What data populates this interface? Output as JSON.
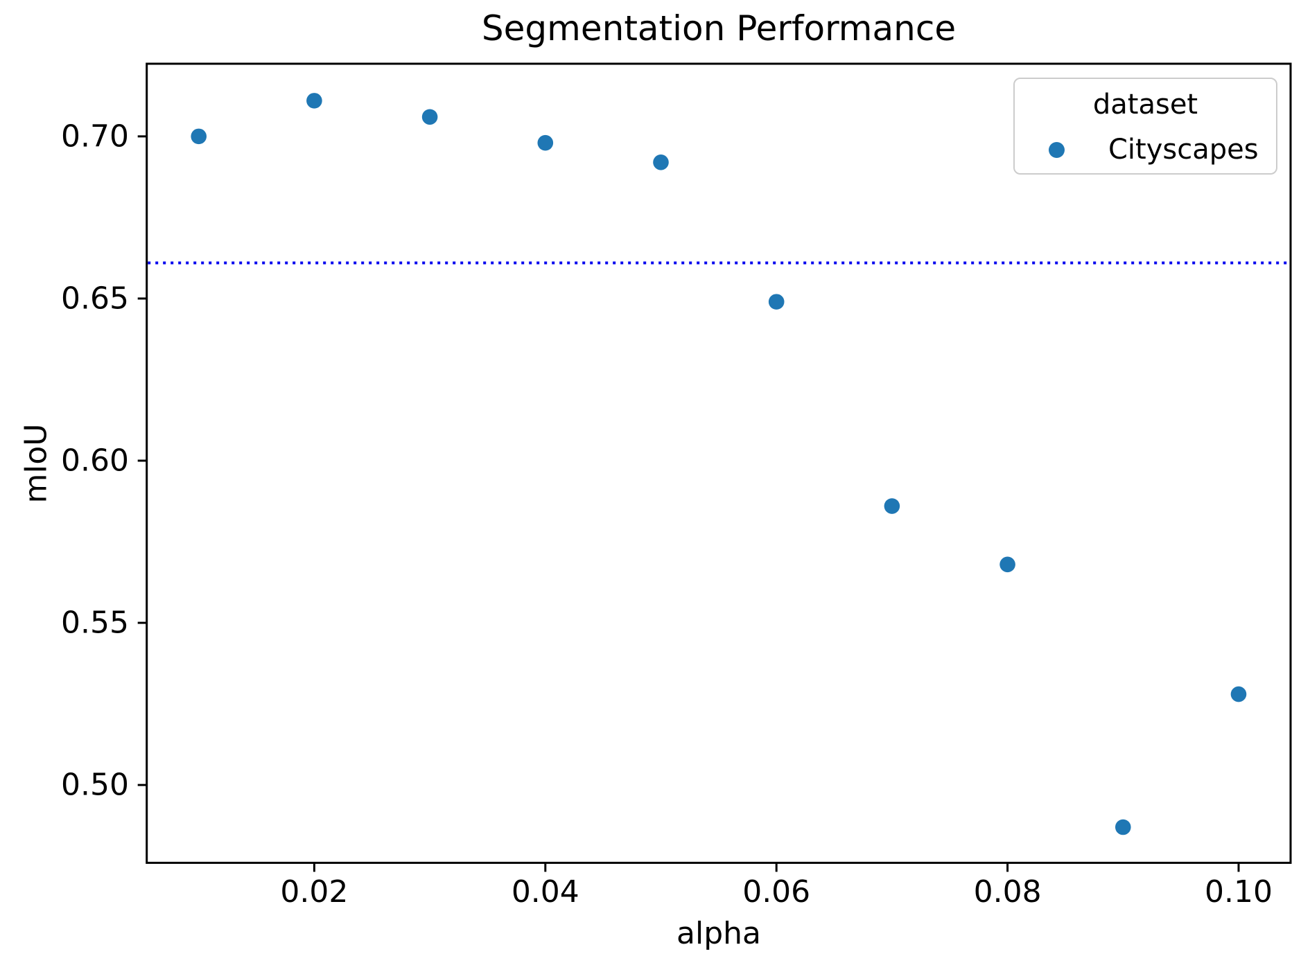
{
  "chart_data": {
    "type": "scatter",
    "title": "Segmentation Performance",
    "xlabel": "alpha",
    "ylabel": "mIoU",
    "grid": false,
    "xlim": [
      0.0055,
      0.1045
    ],
    "ylim": [
      0.476,
      0.7224
    ],
    "xticks": {
      "values": [
        0.02,
        0.04,
        0.06,
        0.08,
        0.1
      ],
      "labels": [
        "0.02",
        "0.04",
        "0.06",
        "0.08",
        "0.10"
      ]
    },
    "yticks": {
      "values": [
        0.5,
        0.55,
        0.6,
        0.65,
        0.7
      ],
      "labels": [
        "0.50",
        "0.55",
        "0.60",
        "0.65",
        "0.70"
      ]
    },
    "series": [
      {
        "name": "Cityscapes",
        "color": "#1f77b4",
        "x": [
          0.01,
          0.02,
          0.03,
          0.04,
          0.05,
          0.06,
          0.07,
          0.08,
          0.09,
          0.1
        ],
        "y": [
          0.7,
          0.711,
          0.706,
          0.698,
          0.692,
          0.649,
          0.586,
          0.568,
          0.487,
          0.528
        ]
      }
    ],
    "reference_line": {
      "y": 0.661,
      "color": "#0000ee",
      "style": "dotted"
    },
    "legend": {
      "title": "dataset",
      "position": "upper right",
      "entries": [
        {
          "label": "Cityscapes",
          "color": "#1f77b4"
        }
      ]
    },
    "colors": {
      "spine": "#000000",
      "text": "#000000",
      "background": "#ffffff"
    }
  }
}
